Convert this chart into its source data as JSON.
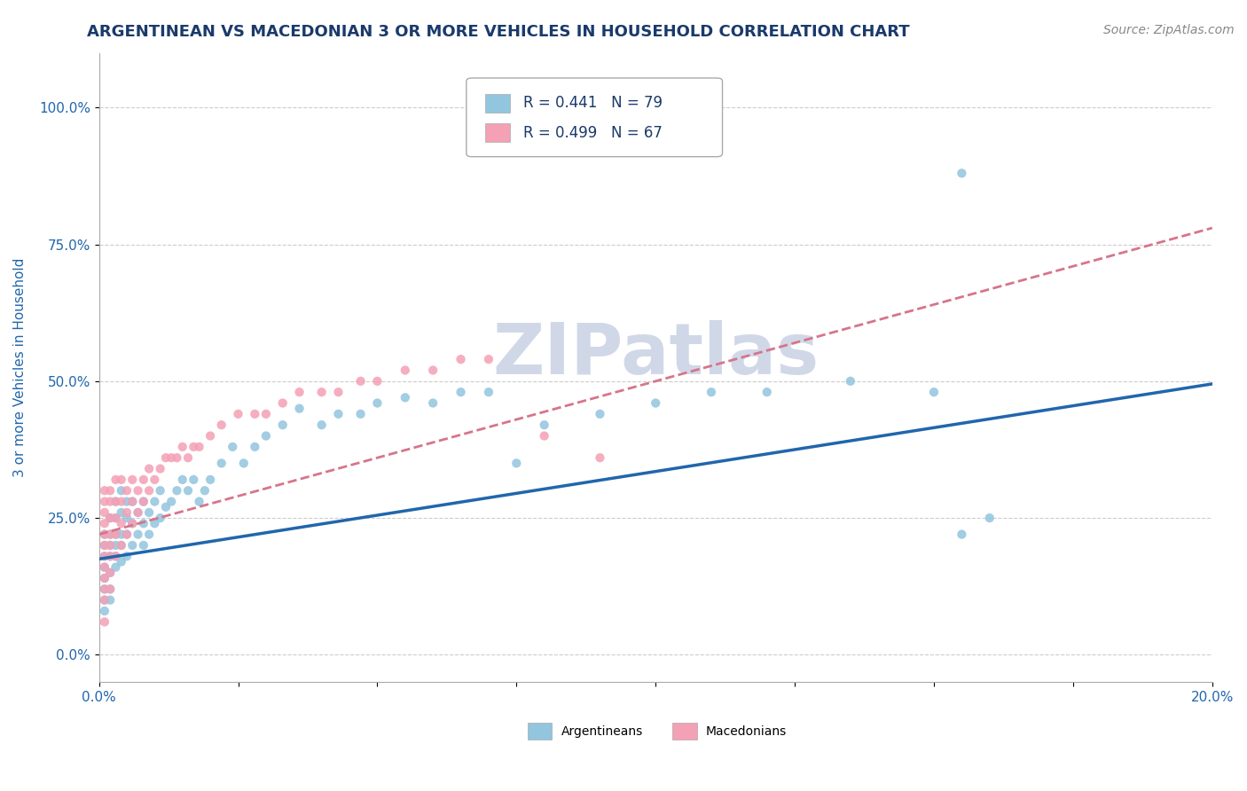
{
  "title": "ARGENTINEAN VS MACEDONIAN 3 OR MORE VEHICLES IN HOUSEHOLD CORRELATION CHART",
  "source_text": "Source: ZipAtlas.com",
  "ylabel": "3 or more Vehicles in Household",
  "xlim": [
    0.0,
    0.2
  ],
  "ylim": [
    -0.05,
    1.1
  ],
  "yticks": [
    0.0,
    0.25,
    0.5,
    0.75,
    1.0
  ],
  "ytick_labels": [
    "0.0%",
    "25.0%",
    "50.0%",
    "75.0%",
    "100.0%"
  ],
  "xticks": [
    0.0,
    0.025,
    0.05,
    0.075,
    0.1,
    0.125,
    0.15,
    0.175,
    0.2
  ],
  "xtick_labels": [
    "0.0%",
    "",
    "",
    "",
    "",
    "",
    "",
    "",
    "20.0%"
  ],
  "title_color": "#1a3a6b",
  "title_fontsize": 13,
  "source_color": "#888888",
  "axis_color": "#aaaaaa",
  "grid_color": "#cccccc",
  "legend_R_argentinean": "R = 0.441",
  "legend_N_argentinean": "N = 79",
  "legend_R_macedonian": "R = 0.499",
  "legend_N_macedonian": "N = 67",
  "argentinean_color": "#92c5de",
  "macedonian_color": "#f4a0b5",
  "argentinean_line_color": "#2166ac",
  "macedonian_line_color": "#d6758a",
  "watermark": "ZIPatlas",
  "watermark_color": "#d0d8e8",
  "watermark_fontsize": 58,
  "legend_label_color": "#1a3a6b",
  "legend_fontsize": 12,
  "axis_tick_color": "#2166ac",
  "axis_tick_fontsize": 11,
  "arg_line_intercept": 0.175,
  "arg_line_slope": 1.6,
  "mac_line_intercept": 0.22,
  "mac_line_slope": 2.8,
  "argentinean_x": [
    0.001,
    0.001,
    0.001,
    0.001,
    0.001,
    0.001,
    0.001,
    0.001,
    0.002,
    0.002,
    0.002,
    0.002,
    0.002,
    0.002,
    0.002,
    0.003,
    0.003,
    0.003,
    0.003,
    0.003,
    0.003,
    0.004,
    0.004,
    0.004,
    0.004,
    0.004,
    0.005,
    0.005,
    0.005,
    0.005,
    0.006,
    0.006,
    0.006,
    0.007,
    0.007,
    0.008,
    0.008,
    0.008,
    0.009,
    0.009,
    0.01,
    0.01,
    0.011,
    0.011,
    0.012,
    0.013,
    0.014,
    0.015,
    0.016,
    0.017,
    0.018,
    0.019,
    0.02,
    0.022,
    0.024,
    0.026,
    0.028,
    0.03,
    0.033,
    0.036,
    0.04,
    0.043,
    0.047,
    0.05,
    0.055,
    0.06,
    0.065,
    0.07,
    0.075,
    0.08,
    0.09,
    0.1,
    0.11,
    0.12,
    0.135,
    0.15,
    0.155,
    0.16,
    0.155
  ],
  "argentinean_y": [
    0.14,
    0.16,
    0.18,
    0.2,
    0.22,
    0.1,
    0.12,
    0.08,
    0.15,
    0.18,
    0.2,
    0.22,
    0.25,
    0.12,
    0.1,
    0.16,
    0.18,
    0.22,
    0.25,
    0.28,
    0.2,
    0.17,
    0.2,
    0.22,
    0.26,
    0.3,
    0.18,
    0.22,
    0.25,
    0.28,
    0.2,
    0.24,
    0.28,
    0.22,
    0.26,
    0.2,
    0.24,
    0.28,
    0.22,
    0.26,
    0.24,
    0.28,
    0.25,
    0.3,
    0.27,
    0.28,
    0.3,
    0.32,
    0.3,
    0.32,
    0.28,
    0.3,
    0.32,
    0.35,
    0.38,
    0.35,
    0.38,
    0.4,
    0.42,
    0.45,
    0.42,
    0.44,
    0.44,
    0.46,
    0.47,
    0.46,
    0.48,
    0.48,
    0.35,
    0.42,
    0.44,
    0.46,
    0.48,
    0.48,
    0.5,
    0.48,
    0.22,
    0.25,
    0.88
  ],
  "macedonian_x": [
    0.001,
    0.001,
    0.001,
    0.001,
    0.001,
    0.001,
    0.001,
    0.001,
    0.001,
    0.001,
    0.001,
    0.002,
    0.002,
    0.002,
    0.002,
    0.002,
    0.002,
    0.002,
    0.002,
    0.003,
    0.003,
    0.003,
    0.003,
    0.003,
    0.004,
    0.004,
    0.004,
    0.004,
    0.005,
    0.005,
    0.005,
    0.006,
    0.006,
    0.006,
    0.007,
    0.007,
    0.008,
    0.008,
    0.009,
    0.009,
    0.01,
    0.011,
    0.012,
    0.013,
    0.014,
    0.015,
    0.016,
    0.017,
    0.018,
    0.02,
    0.022,
    0.025,
    0.028,
    0.03,
    0.033,
    0.036,
    0.04,
    0.043,
    0.047,
    0.05,
    0.055,
    0.06,
    0.065,
    0.07,
    0.08,
    0.09,
    0.001
  ],
  "macedonian_y": [
    0.14,
    0.16,
    0.18,
    0.2,
    0.22,
    0.24,
    0.26,
    0.1,
    0.12,
    0.28,
    0.3,
    0.15,
    0.18,
    0.2,
    0.22,
    0.25,
    0.28,
    0.12,
    0.3,
    0.18,
    0.22,
    0.25,
    0.28,
    0.32,
    0.2,
    0.24,
    0.28,
    0.32,
    0.22,
    0.26,
    0.3,
    0.24,
    0.28,
    0.32,
    0.26,
    0.3,
    0.28,
    0.32,
    0.3,
    0.34,
    0.32,
    0.34,
    0.36,
    0.36,
    0.36,
    0.38,
    0.36,
    0.38,
    0.38,
    0.4,
    0.42,
    0.44,
    0.44,
    0.44,
    0.46,
    0.48,
    0.48,
    0.48,
    0.5,
    0.5,
    0.52,
    0.52,
    0.54,
    0.54,
    0.4,
    0.36,
    0.06
  ]
}
